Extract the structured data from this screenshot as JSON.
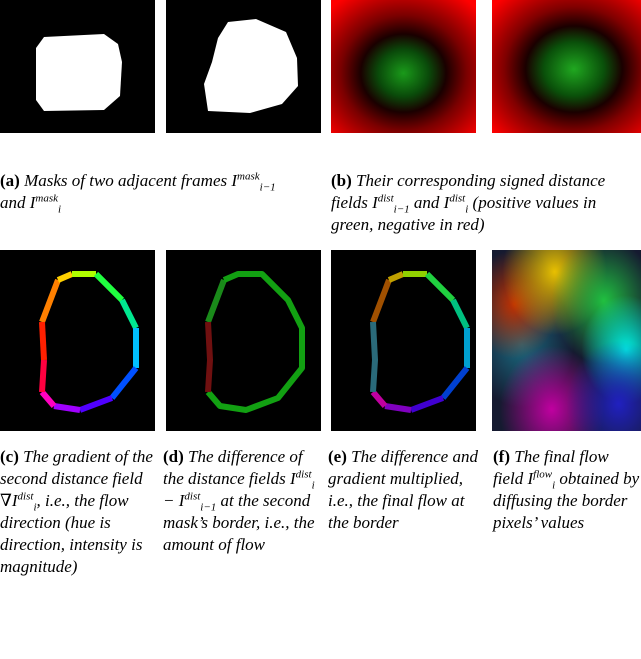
{
  "figure": {
    "a": {
      "label": "(a)",
      "text": "Masks of two adjacent frames I",
      "sym1_sup": "mask",
      "sym1_sub": "i−1",
      "mid": " and I",
      "sym2_sup": "mask",
      "sym2_sub": "i"
    },
    "b": {
      "label": "(b)",
      "text": "Their corresponding signed distance fields I",
      "sym1_sup": "dist",
      "sym1_sub": "i−1",
      "mid": " and I",
      "sym2_sup": "dist",
      "sym2_sub": "i",
      "tail": "(positive values in green, negative in red)"
    },
    "c": {
      "label": "(c)",
      "text1": "The gradient of the second distance field ∇I",
      "sym_sup": "dist",
      "sym_sub": "i",
      "tail": ", i.e., the flow direction (hue is direction, intensity is magnitude)"
    },
    "d": {
      "label": "(d)",
      "text1": "The difference of the distance fields I",
      "sym1_sup": "dist",
      "sym1_sub": "i",
      "minus": " − I",
      "sym2_sup": "dist",
      "sym2_sub": "i−1",
      "tail": "at the second mask’s border, i.e., the amount of flow"
    },
    "e": {
      "label": "(e)",
      "text": "The difference and gradient multiplied, i.e., the final flow at the border"
    },
    "f": {
      "label": "(f)",
      "text1": "The final flow field I",
      "sym_sup": "flow",
      "sym_sub": "i",
      "tail": "obtained by diffusing the border pixels’ values"
    }
  },
  "colors": {
    "background": "#000000",
    "mask": "#ffffff",
    "negative": "#ff0000",
    "positive": "#00c000"
  }
}
